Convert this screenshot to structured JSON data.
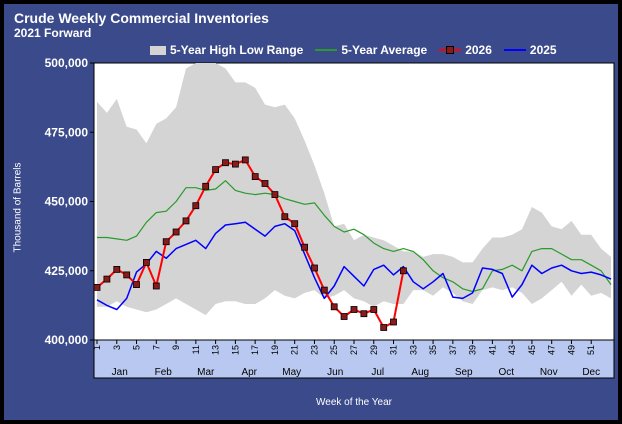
{
  "chart_data": {
    "type": "line",
    "title": "Crude Weekly Commercial  Inventories",
    "subtitle": "2021 Forward",
    "ylabel": "Thousand of Barrels",
    "xlabel": "Week of the Year",
    "ylim": [
      400000,
      500000
    ],
    "yticks": [
      400000,
      425000,
      450000,
      475000,
      500000
    ],
    "ytick_labels": [
      "400,000",
      "425,000",
      "450,000",
      "475,000",
      "500,000"
    ],
    "xlim": [
      1,
      53
    ],
    "week_ticks": [
      "1",
      "3",
      "5",
      "7",
      "9",
      "11",
      "13",
      "15",
      "17",
      "19",
      "21",
      "23",
      "25",
      "27",
      "29",
      "31",
      "33",
      "35",
      "37",
      "39",
      "41",
      "43",
      "45",
      "47",
      "49",
      "51"
    ],
    "months": [
      "Jan",
      "Feb",
      "Mar",
      "Apr",
      "May",
      "Jun",
      "Jul",
      "Aug",
      "Sep",
      "Oct",
      "Nov",
      "Dec"
    ],
    "month_weeks": [
      3.3,
      7.7,
      12,
      16.4,
      20.7,
      25.1,
      29.4,
      33.7,
      38.1,
      42.4,
      46.7,
      51
    ],
    "legend_position": "top",
    "grid": false,
    "background": "#ffffff",
    "series": [
      {
        "name": "5-Year High Low Range",
        "type": "band",
        "color": "#d4d4d4",
        "x": [
          1,
          2,
          3,
          4,
          5,
          6,
          7,
          8,
          9,
          10,
          11,
          12,
          13,
          14,
          15,
          16,
          17,
          18,
          19,
          20,
          21,
          22,
          23,
          24,
          25,
          26,
          27,
          28,
          29,
          30,
          31,
          32,
          33,
          34,
          35,
          36,
          37,
          38,
          39,
          40,
          41,
          42,
          43,
          44,
          45,
          46,
          47,
          48,
          49,
          50,
          51,
          52,
          53
        ],
        "high": [
          486,
          482,
          487,
          477,
          476,
          471,
          478,
          480,
          484,
          498,
          500,
          500,
          500,
          498,
          493,
          493,
          491,
          485,
          484,
          485,
          480,
          472,
          463,
          453,
          441,
          442,
          436,
          438,
          437,
          436,
          434,
          432,
          432,
          430,
          431,
          431,
          430,
          428,
          428,
          433,
          437,
          437,
          438,
          440,
          448,
          446,
          441,
          440,
          443,
          438,
          438,
          433,
          430
        ],
        "low": [
          412,
          412,
          414,
          412,
          411,
          410,
          411,
          413,
          415,
          413,
          411,
          409,
          413,
          414,
          414,
          413,
          413,
          415,
          418,
          416,
          415,
          417,
          418,
          415,
          416,
          418,
          415,
          414,
          412,
          414,
          413,
          413,
          418,
          418,
          416,
          419,
          417,
          414,
          413,
          418,
          419,
          418,
          419,
          417,
          413,
          415,
          418,
          421,
          416,
          420,
          416,
          417,
          415
        ]
      },
      {
        "name": "5-Year Average",
        "color": "#2a9a2a",
        "x": [
          1,
          2,
          3,
          4,
          5,
          6,
          7,
          8,
          9,
          10,
          11,
          12,
          13,
          14,
          15,
          16,
          17,
          18,
          19,
          20,
          21,
          22,
          23,
          24,
          25,
          26,
          27,
          28,
          29,
          30,
          31,
          32,
          33,
          34,
          35,
          36,
          37,
          38,
          39,
          40,
          41,
          42,
          43,
          44,
          45,
          46,
          47,
          48,
          49,
          50,
          51,
          52,
          53
        ],
        "values": [
          437,
          437,
          436.5,
          436,
          437.5,
          442.5,
          446,
          446.5,
          450,
          455,
          455,
          454,
          454.5,
          457.5,
          454,
          453,
          452.5,
          453,
          452.5,
          451,
          450,
          449,
          449.5,
          445,
          441,
          439,
          440,
          438,
          435,
          433,
          432,
          433,
          432,
          429,
          425,
          422.5,
          421,
          418.5,
          417.5,
          418.5,
          425,
          425.5,
          427,
          425,
          432,
          433,
          433,
          431,
          429,
          429,
          427,
          425,
          420
        ]
      },
      {
        "name": "2026",
        "color": "#ff0000",
        "marker_color": "#8b1a1a",
        "x": [
          1,
          2,
          3,
          4,
          5,
          6,
          7,
          8,
          9,
          10,
          11,
          12,
          13,
          14,
          15,
          16,
          17,
          18,
          19,
          20,
          21,
          22,
          23,
          24,
          25,
          26,
          27,
          28,
          29,
          30,
          31,
          32
        ],
        "values": [
          419,
          422,
          425.5,
          423.5,
          420,
          428,
          419.5,
          435.5,
          439,
          443,
          448.5,
          455.5,
          461.5,
          464,
          463.5,
          465,
          459,
          456.5,
          452.5,
          444.5,
          442,
          433.5,
          426,
          418,
          412,
          408.5,
          411,
          409.5,
          411,
          404.5,
          406.5,
          425
        ]
      },
      {
        "name": "2025",
        "color": "#0000ff",
        "x": [
          1,
          2,
          3,
          4,
          5,
          6,
          7,
          8,
          9,
          10,
          11,
          12,
          13,
          14,
          15,
          16,
          17,
          18,
          19,
          20,
          21,
          22,
          23,
          24,
          25,
          26,
          27,
          28,
          29,
          30,
          31,
          32,
          33,
          34,
          35,
          36,
          37,
          38,
          39,
          40,
          41,
          42,
          43,
          44,
          45,
          46,
          47,
          48,
          49,
          50,
          51,
          52,
          53
        ],
        "values": [
          414.5,
          412.5,
          411,
          415,
          424.5,
          427.5,
          432,
          429.5,
          433,
          434.5,
          436,
          433,
          438.5,
          441.5,
          442,
          442.5,
          440,
          437.5,
          441,
          442,
          439.5,
          431,
          422.5,
          415,
          419.5,
          426.5,
          423,
          419.5,
          425.5,
          427,
          423.5,
          426.5,
          421,
          418.5,
          421,
          424,
          415.5,
          415,
          417,
          426,
          425.5,
          424,
          415.5,
          420,
          427,
          424,
          426,
          427,
          425,
          424,
          424.5,
          423.5,
          422
        ]
      }
    ]
  }
}
